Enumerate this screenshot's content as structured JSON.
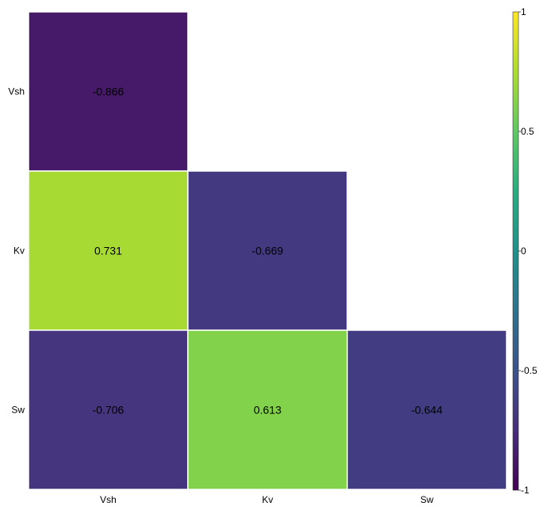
{
  "chart_data": {
    "type": "heatmap",
    "title": "",
    "xlabel": "",
    "ylabel": "",
    "x_categories": [
      "Vsh",
      "Kv",
      "Sw"
    ],
    "y_categories": [
      "Vsh",
      "Kv",
      "Sw"
    ],
    "cells": [
      {
        "row": 0,
        "col": 0,
        "value": -0.866,
        "label": "-0.866"
      },
      {
        "row": 1,
        "col": 0,
        "value": 0.731,
        "label": "0.731"
      },
      {
        "row": 1,
        "col": 1,
        "value": -0.669,
        "label": "-0.669"
      },
      {
        "row": 2,
        "col": 0,
        "value": -0.706,
        "label": "-0.706"
      },
      {
        "row": 2,
        "col": 1,
        "value": 0.613,
        "label": "0.613"
      },
      {
        "row": 2,
        "col": 2,
        "value": -0.644,
        "label": "-0.644"
      }
    ],
    "colorbar": {
      "colormap": "viridis",
      "range": [
        -1,
        1
      ],
      "ticks": [
        {
          "value": 1,
          "label": "1"
        },
        {
          "value": 0.5,
          "label": "0.5"
        },
        {
          "value": 0,
          "label": "0"
        },
        {
          "value": -0.5,
          "label": "-0.5"
        },
        {
          "value": -1,
          "label": "-1"
        }
      ],
      "placement": "right"
    },
    "grid": false
  }
}
